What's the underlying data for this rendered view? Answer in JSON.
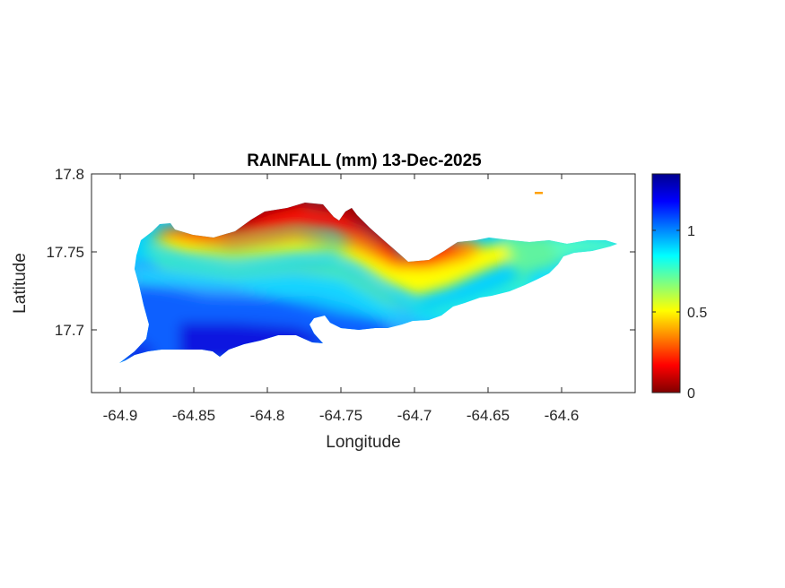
{
  "chart_data": {
    "type": "heatmap",
    "title": "RAINFALL (mm) 13-Dec-2025",
    "xlabel": "Longitude",
    "ylabel": "Latitude",
    "xlim": [
      -64.92,
      -64.55
    ],
    "ylim": [
      17.665,
      17.8
    ],
    "x_ticks": [
      -64.9,
      -64.85,
      -64.8,
      -64.75,
      -64.7,
      -64.65,
      -64.6
    ],
    "x_tick_labels": [
      "-64.9",
      "-64.85",
      "-64.8",
      "-64.75",
      "-64.7",
      "-64.65",
      "-64.6"
    ],
    "y_ticks": [
      17.7,
      17.75,
      17.8
    ],
    "y_tick_labels": [
      "17.7",
      "17.75",
      "17.8"
    ],
    "colormap": "jet",
    "clim": [
      0,
      1.35
    ],
    "colorbar_ticks": [
      0,
      0.5,
      1
    ],
    "colorbar_tick_labels": [
      "0",
      "0.5",
      "1"
    ],
    "trend": "rainfall lowest (about 0 mm) along the northern coast, highest (about 1.3 mm) in the south-west, decreasing toward the eastern tip (about 0.7 mm)",
    "grid": false
  }
}
